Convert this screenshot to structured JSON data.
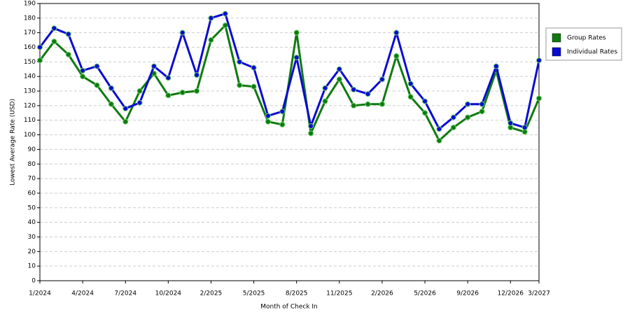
{
  "chart_data": {
    "type": "line",
    "x_label": "Month of Check In",
    "y_label": "Lowest Average Rate (USD)",
    "categories": [
      "1/2024",
      null,
      null,
      "4/2024",
      null,
      null,
      "7/2024",
      null,
      null,
      "10/2024",
      null,
      null,
      "2/2025",
      null,
      null,
      "5/2025",
      null,
      null,
      "8/2025",
      null,
      null,
      "11/2025",
      null,
      null,
      "2/2026",
      null,
      null,
      "5/2026",
      null,
      null,
      "9/2026",
      null,
      null,
      "12/2026",
      null,
      "3/2027"
    ],
    "series": [
      {
        "name": "Group Rates",
        "color": "#0f7a0f",
        "values": [
          151,
          164,
          155,
          140,
          134,
          121,
          109,
          130,
          142,
          127,
          129,
          130,
          165,
          175,
          134,
          133,
          109,
          107,
          170,
          101,
          123,
          138,
          120,
          121,
          121,
          154,
          126,
          115,
          96,
          105,
          112,
          116,
          144,
          105,
          102,
          125
        ]
      },
      {
        "name": "Individual Rates",
        "color": "#0a0ad2",
        "values": [
          160,
          173,
          169,
          144,
          147,
          132,
          118,
          122,
          147,
          139,
          170,
          141,
          180,
          183,
          150,
          146,
          113,
          116,
          153,
          106,
          132,
          145,
          131,
          128,
          138,
          170,
          135,
          123,
          104,
          112,
          121,
          121,
          147,
          108,
          105,
          151
        ]
      }
    ],
    "ylim": [
      0,
      190
    ],
    "yticks": [
      0,
      10,
      20,
      30,
      40,
      50,
      60,
      70,
      80,
      90,
      100,
      110,
      120,
      130,
      140,
      150,
      160,
      170,
      180,
      190
    ],
    "grid": true,
    "legend": "right"
  }
}
